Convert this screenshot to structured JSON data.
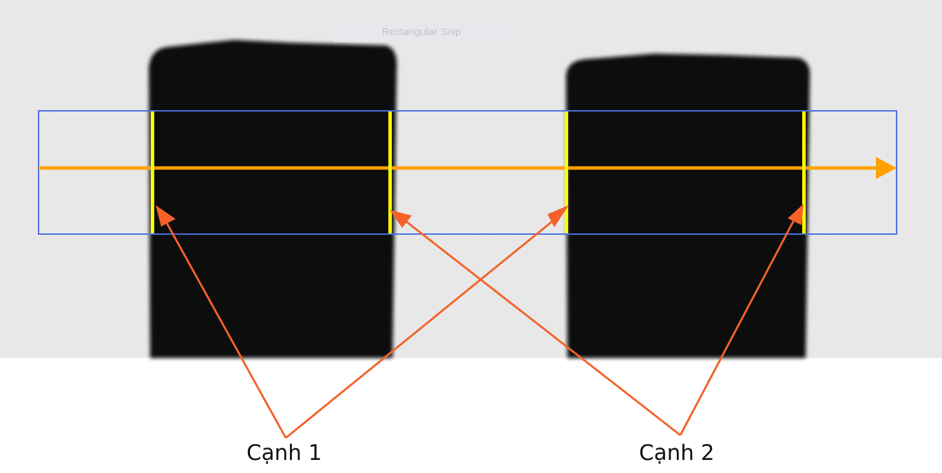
{
  "overlay": {
    "snip_label": "Rectangular Snip"
  },
  "labels": {
    "edge1": "Cạnh 1",
    "edge2": "Cạnh 2"
  },
  "colors": {
    "background": "#e9e9e9",
    "object": "#0c0c0c",
    "roi_box": "#4a6fe0",
    "scan_arrow": "#ffa200",
    "edge_marker": "#ffff00",
    "pointer": "#f4622a"
  }
}
